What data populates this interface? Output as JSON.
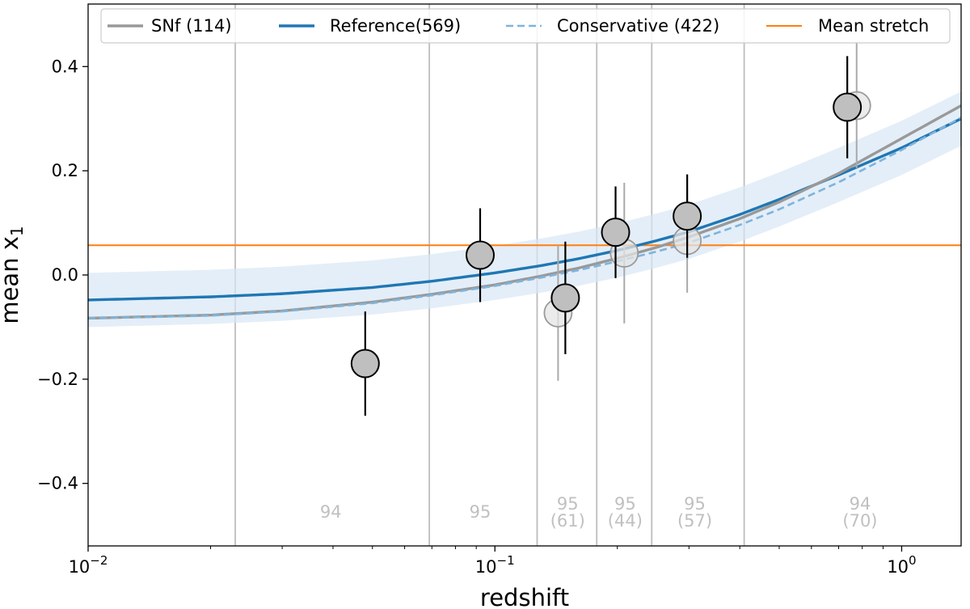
{
  "chart_data": {
    "type": "line",
    "xlabel": "redshift",
    "ylabel_base": "mean x",
    "ylabel_sub": "1",
    "xscale": "log",
    "xlim": [
      0.01,
      1.4
    ],
    "ylim": [
      -0.52,
      0.52
    ],
    "grid": false,
    "legend_placement": "top",
    "x_major_ticks": [
      {
        "value": 0.01,
        "base": "10",
        "exp": "−2"
      },
      {
        "value": 0.1,
        "base": "10",
        "exp": "−1"
      },
      {
        "value": 1,
        "base": "10",
        "exp": "0"
      }
    ],
    "y_ticks": [
      {
        "value": 0.4,
        "label": "0.4"
      },
      {
        "value": 0.2,
        "label": "0.2"
      },
      {
        "value": 0.0,
        "label": "0.0"
      },
      {
        "value": -0.2,
        "label": "−0.2"
      },
      {
        "value": -0.4,
        "label": "−0.4"
      }
    ],
    "bin_edges": [
      0.023,
      0.069,
      0.127,
      0.178,
      0.243,
      0.41
    ],
    "mean_stretch": 0.057,
    "band_offset": 0.052,
    "series": [
      {
        "name": "SNf (114)",
        "style": "solid-gray",
        "color": "#999999",
        "x": [
          0.01,
          0.02,
          0.03,
          0.05,
          0.07,
          0.1,
          0.13,
          0.16,
          0.2,
          0.25,
          0.3,
          0.4,
          0.5,
          0.7,
          1.0,
          1.4
        ],
        "y": [
          -0.083,
          -0.077,
          -0.069,
          -0.052,
          -0.037,
          -0.019,
          -0.002,
          0.013,
          0.032,
          0.053,
          0.073,
          0.108,
          0.14,
          0.195,
          0.262,
          0.325
        ]
      },
      {
        "name": "Reference(569)",
        "style": "solid-blue",
        "color": "#1f77b4",
        "x": [
          0.01,
          0.02,
          0.03,
          0.05,
          0.07,
          0.1,
          0.13,
          0.16,
          0.2,
          0.25,
          0.3,
          0.4,
          0.5,
          0.7,
          1.0,
          1.4
        ],
        "y": [
          -0.048,
          -0.042,
          -0.036,
          -0.024,
          -0.012,
          0.004,
          0.018,
          0.031,
          0.047,
          0.066,
          0.083,
          0.116,
          0.145,
          0.192,
          0.244,
          0.3
        ]
      },
      {
        "name": "Conservative (422)",
        "style": "dashed-lightblue",
        "color": "#7eb4dc",
        "x": [
          0.01,
          0.02,
          0.03,
          0.05,
          0.07,
          0.1,
          0.13,
          0.16,
          0.2,
          0.25,
          0.3,
          0.4,
          0.5,
          0.7,
          1.0,
          1.4
        ],
        "y": [
          -0.083,
          -0.078,
          -0.07,
          -0.054,
          -0.039,
          -0.021,
          -0.005,
          0.009,
          0.026,
          0.045,
          0.062,
          0.096,
          0.126,
          0.178,
          0.24,
          0.302
        ]
      },
      {
        "name": "Mean stretch",
        "style": "hline-orange",
        "color": "#ff7f0e"
      }
    ],
    "points_main": [
      {
        "x": 0.048,
        "y": -0.17,
        "err": 0.1
      },
      {
        "x": 0.092,
        "y": 0.038,
        "err": 0.09
      },
      {
        "x": 0.149,
        "y": -0.044,
        "err": 0.108
      },
      {
        "x": 0.198,
        "y": 0.082,
        "err": 0.088
      },
      {
        "x": 0.297,
        "y": 0.113,
        "err": 0.08
      },
      {
        "x": 0.735,
        "y": 0.322,
        "err": 0.098
      }
    ],
    "points_conservative": [
      {
        "x": 0.143,
        "y": -0.073,
        "err": 0.13
      },
      {
        "x": 0.208,
        "y": 0.042,
        "err": 0.135
      },
      {
        "x": 0.297,
        "y": 0.066,
        "err": 0.1
      },
      {
        "x": 0.775,
        "y": 0.325,
        "err": 0.12
      }
    ],
    "bin_counts": [
      {
        "x": 0.0395,
        "n": "94",
        "sub": ""
      },
      {
        "x": 0.092,
        "n": "95",
        "sub": ""
      },
      {
        "x": 0.151,
        "n": "95",
        "sub": "(61)"
      },
      {
        "x": 0.209,
        "n": "95",
        "sub": "(44)"
      },
      {
        "x": 0.31,
        "n": "95",
        "sub": "(57)"
      },
      {
        "x": 0.79,
        "n": "94",
        "sub": "(70)"
      }
    ]
  }
}
